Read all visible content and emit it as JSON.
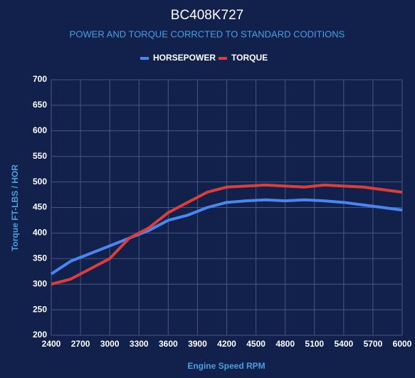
{
  "chart_data": {
    "type": "line",
    "title": "BC408K727",
    "subtitle": "POWER AND TORQUE CORRCTED TO STANDARD CODITIONS",
    "x_label": "Engine Speed RPM",
    "y_label": "Torque FT-LBS / HOR",
    "x": [
      2400,
      2600,
      2800,
      3000,
      3200,
      3400,
      3600,
      3800,
      4000,
      4200,
      4400,
      4600,
      4800,
      5000,
      5200,
      5400,
      5600,
      5800,
      6000
    ],
    "series": [
      {
        "name": "HORSEPOWER",
        "color": "#4a86f0",
        "values": [
          320,
          345,
          360,
          375,
          390,
          405,
          425,
          435,
          450,
          460,
          463,
          465,
          463,
          465,
          463,
          460,
          455,
          450,
          445
        ]
      },
      {
        "name": "TORQUE",
        "color": "#dc3e3a",
        "values": [
          300,
          310,
          330,
          350,
          390,
          410,
          440,
          460,
          480,
          490,
          492,
          494,
          492,
          490,
          494,
          492,
          490,
          485,
          480
        ]
      }
    ],
    "xlim": [
      2400,
      6000
    ],
    "xticks": [
      2400,
      2700,
      3000,
      3300,
      3600,
      3900,
      4200,
      4500,
      4800,
      5100,
      5400,
      5700,
      6000
    ],
    "ylim": [
      200,
      700
    ],
    "yticks": [
      200,
      250,
      300,
      350,
      400,
      450,
      500,
      550,
      600,
      650,
      700
    ],
    "grid": true,
    "legend": "top"
  }
}
